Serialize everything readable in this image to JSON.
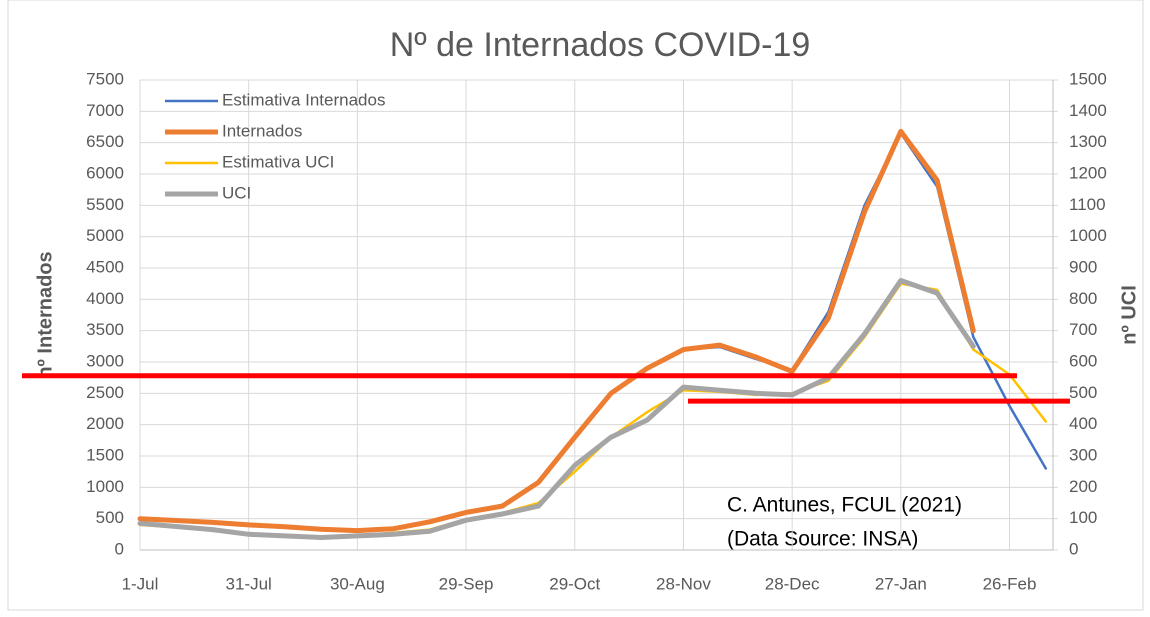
{
  "chart_data": {
    "type": "line",
    "title": "Nº de Internados COVID-19",
    "y_label": "nº Internados",
    "y2_label": "nº UCI",
    "annotations": [
      "C. Antunes, FCUL (2021)",
      "(Data Source: INSA)"
    ],
    "x": [
      0,
      10,
      20,
      30,
      40,
      50,
      60,
      70,
      80,
      90,
      100,
      110,
      120,
      130,
      140,
      150,
      160,
      170,
      180,
      190,
      200,
      210,
      220,
      230,
      240,
      250
    ],
    "xlim": [
      0,
      252
    ],
    "xticks": [
      {
        "value": 0,
        "label": "1-Jul"
      },
      {
        "value": 30,
        "label": "31-Jul"
      },
      {
        "value": 60,
        "label": "30-Aug"
      },
      {
        "value": 90,
        "label": "29-Sep"
      },
      {
        "value": 120,
        "label": "29-Oct"
      },
      {
        "value": 150,
        "label": "28-Nov"
      },
      {
        "value": 180,
        "label": "28-Dec"
      },
      {
        "value": 210,
        "label": "27-Jan"
      },
      {
        "value": 240,
        "label": "26-Feb"
      }
    ],
    "ylim": [
      0,
      7500
    ],
    "yticks": [
      0,
      500,
      1000,
      1500,
      2000,
      2500,
      3000,
      3500,
      4000,
      4500,
      5000,
      5500,
      6000,
      6500,
      7000,
      7500
    ],
    "y2lim": [
      0,
      1500
    ],
    "y2ticks": [
      0,
      100,
      200,
      300,
      400,
      500,
      600,
      700,
      800,
      900,
      1000,
      1100,
      1200,
      1300,
      1400,
      1500
    ],
    "grid": true,
    "legend": "top-left",
    "series": [
      {
        "name": "Estimativa Internados",
        "color": "#4472c4",
        "line_width": 2.5,
        "values": [
          490,
          465,
          435,
          395,
          365,
          330,
          315,
          345,
          460,
          610,
          720,
          1100,
          1820,
          2500,
          2900,
          3200,
          3240,
          3050,
          2870,
          3800,
          5500,
          6650,
          5800,
          3400,
          2300,
          1300
        ]
      },
      {
        "name": "Internados",
        "color": "#ed7d31",
        "line_width": 5,
        "values": [
          500,
          470,
          440,
          400,
          370,
          330,
          310,
          340,
          450,
          600,
          700,
          1080,
          1800,
          2500,
          2900,
          3200,
          3270,
          3080,
          2850,
          3700,
          5400,
          6680,
          5900,
          3500,
          null,
          null
        ]
      },
      {
        "name": "Estimativa UCI",
        "color": "#ffc000",
        "line_width": 2.5,
        "axis": "y2",
        "values": [
          80,
          72,
          62,
          48,
          44,
          40,
          46,
          55,
          65,
          98,
          118,
          150,
          250,
          360,
          440,
          510,
          505,
          495,
          500,
          540,
          680,
          850,
          830,
          640,
          560,
          410
        ]
      },
      {
        "name": "UCI",
        "color": "#a5a5a5",
        "line_width": 5,
        "axis": "y2",
        "values": [
          85,
          75,
          65,
          50,
          45,
          40,
          45,
          50,
          60,
          95,
          115,
          140,
          270,
          360,
          415,
          520,
          510,
          500,
          495,
          550,
          690,
          860,
          820,
          650,
          null,
          null
        ]
      }
    ],
    "reference_lines": [
      {
        "value": 2780,
        "color": "#ff0000"
      },
      {
        "value": 475,
        "color": "#ff0000",
        "axis": "y2"
      }
    ]
  }
}
